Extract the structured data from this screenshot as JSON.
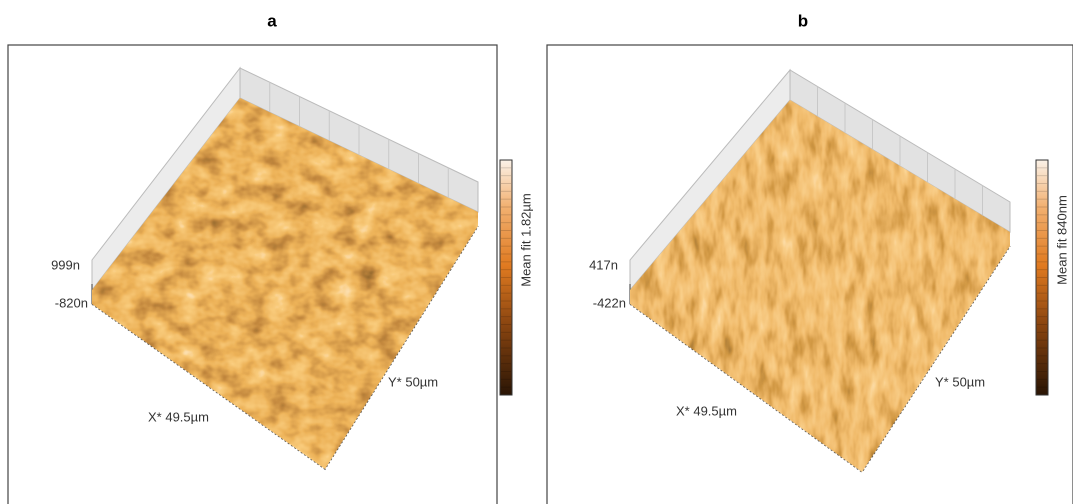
{
  "panels": [
    {
      "label": "a",
      "z_max": "999n",
      "z_min": "-820n",
      "x_axis": "X* 49.5µm",
      "y_axis": "Y* 50µm",
      "colorbar": "Mean fit 1.82µm"
    },
    {
      "label": "b",
      "z_max": "417n",
      "z_min": "-422n",
      "x_axis": "X* 49.5µm",
      "y_axis": "Y* 50µm",
      "colorbar": "Mean fit 840nm"
    }
  ]
}
